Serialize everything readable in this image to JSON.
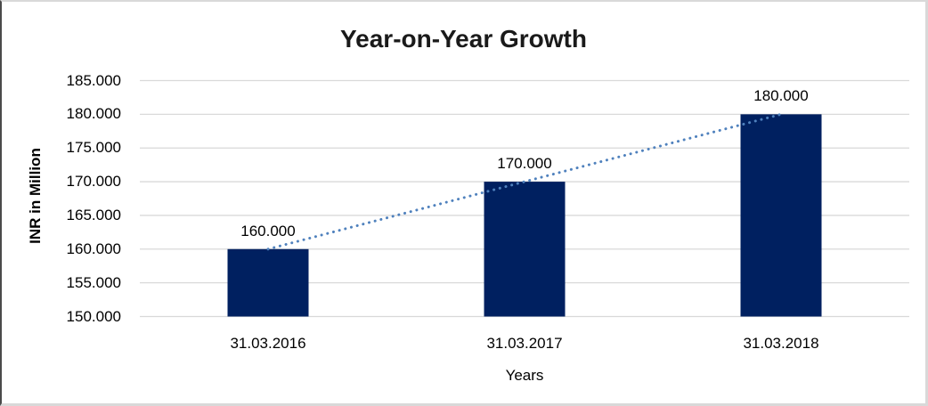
{
  "chart_data": {
    "type": "bar",
    "title": "Year-on-Year Growth",
    "xlabel": "Years",
    "ylabel": "INR in Million",
    "categories": [
      "31.03.2016",
      "31.03.2017",
      "31.03.2018"
    ],
    "values": [
      160000,
      170000,
      180000
    ],
    "value_labels": [
      "160.000",
      "170.000",
      "180.000"
    ],
    "yticks": [
      {
        "value": 150000,
        "label": "150.000"
      },
      {
        "value": 155000,
        "label": "155.000"
      },
      {
        "value": 160000,
        "label": "160.000"
      },
      {
        "value": 165000,
        "label": "165.000"
      },
      {
        "value": 170000,
        "label": "170.000"
      },
      {
        "value": 175000,
        "label": "175.000"
      },
      {
        "value": 180000,
        "label": "180.000"
      },
      {
        "value": 185000,
        "label": "185.000"
      }
    ],
    "ylim": [
      150000,
      185000
    ],
    "grid": "horizontal",
    "legend": "none",
    "trendline": {
      "style": "dotted",
      "through": "bar-tops"
    },
    "colors": {
      "bar": "#002060",
      "gridline": "#d9d9d9",
      "trendline": "#4f81bd",
      "text": "#000000",
      "title": "#1a1a1a"
    }
  }
}
